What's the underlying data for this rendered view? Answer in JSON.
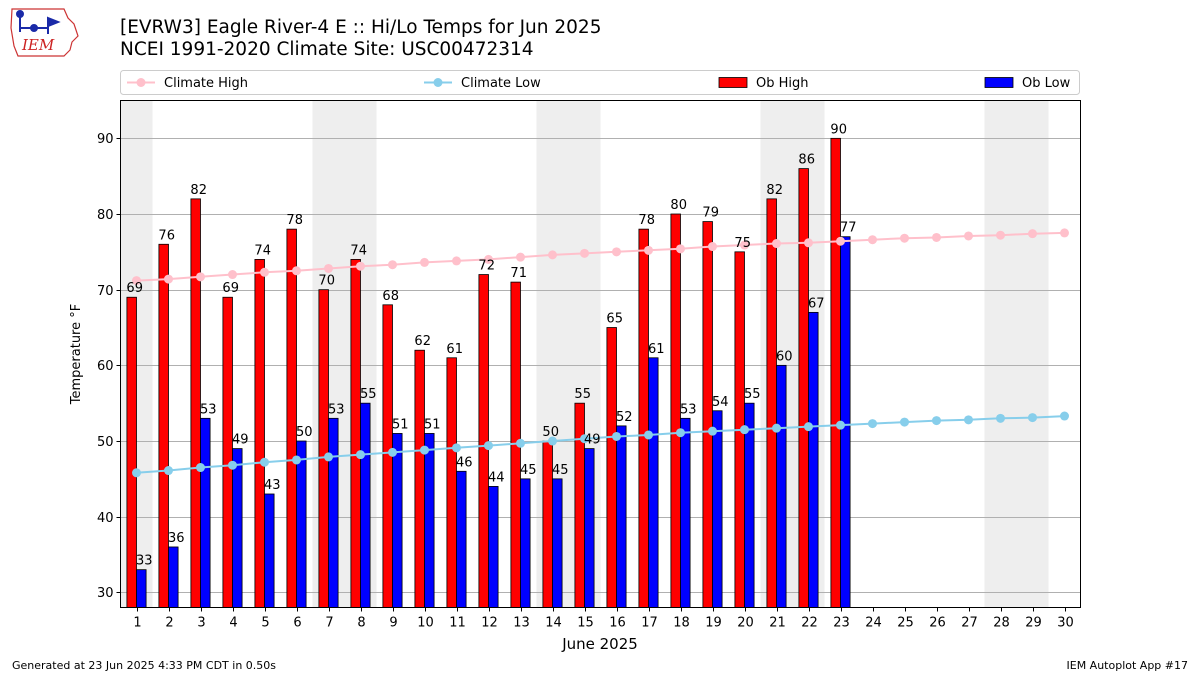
{
  "header": {
    "title_line1": "[EVRW3] Eagle River-4 E :: Hi/Lo Temps for Jun 2025",
    "title_line2": "NCEI 1991-2020 Climate Site: USC00472314"
  },
  "logo": {
    "text": "IEM"
  },
  "footer": {
    "generated": "Generated at 23 Jun 2025 4:33 PM CDT in 0.50s",
    "app": "IEM Autoplot App #17"
  },
  "colors": {
    "ob_high": "#ff0000",
    "ob_low": "#0000ff",
    "climate_high": "#ffc0cb",
    "climate_low": "#87ceeb",
    "weekend_shade": "#eeeeee"
  },
  "chart_data": {
    "type": "bar",
    "xlabel": "June 2025",
    "ylabel": "Temperature °F",
    "xlim": [
      0.5,
      30.5
    ],
    "ylim": [
      28,
      95
    ],
    "yticks": [
      30,
      40,
      50,
      60,
      70,
      80,
      90
    ],
    "grid": "y",
    "legend_position": "top",
    "weekend_days": [
      1,
      7,
      8,
      14,
      15,
      21,
      22,
      28,
      29
    ],
    "x": [
      1,
      2,
      3,
      4,
      5,
      6,
      7,
      8,
      9,
      10,
      11,
      12,
      13,
      14,
      15,
      16,
      17,
      18,
      19,
      20,
      21,
      22,
      23,
      24,
      25,
      26,
      27,
      28,
      29,
      30
    ],
    "series": [
      {
        "name": "Climate High",
        "kind": "line",
        "values": [
          71.2,
          71.4,
          71.7,
          72.0,
          72.3,
          72.5,
          72.8,
          73.1,
          73.3,
          73.6,
          73.8,
          74.0,
          74.3,
          74.6,
          74.8,
          75.0,
          75.2,
          75.4,
          75.7,
          75.9,
          76.1,
          76.2,
          76.4,
          76.6,
          76.8,
          76.9,
          77.1,
          77.2,
          77.4,
          77.5
        ]
      },
      {
        "name": "Climate Low",
        "kind": "line",
        "values": [
          45.8,
          46.1,
          46.5,
          46.8,
          47.2,
          47.5,
          47.9,
          48.2,
          48.5,
          48.8,
          49.1,
          49.4,
          49.7,
          50.0,
          50.3,
          50.6,
          50.8,
          51.1,
          51.3,
          51.5,
          51.7,
          51.9,
          52.1,
          52.3,
          52.5,
          52.7,
          52.8,
          53.0,
          53.1,
          53.3
        ]
      },
      {
        "name": "Ob High",
        "kind": "bar",
        "values": [
          69,
          76,
          82,
          69,
          74,
          78,
          70,
          74,
          68,
          62,
          61,
          72,
          71,
          50,
          55,
          65,
          78,
          80,
          79,
          75,
          82,
          86,
          90,
          null,
          null,
          null,
          null,
          null,
          null,
          null
        ]
      },
      {
        "name": "Ob Low",
        "kind": "bar",
        "values": [
          33,
          36,
          53,
          49,
          43,
          50,
          53,
          55,
          51,
          51,
          46,
          44,
          45,
          45,
          49,
          52,
          61,
          53,
          54,
          55,
          60,
          67,
          77,
          null,
          null,
          null,
          null,
          null,
          null,
          null
        ]
      }
    ]
  }
}
